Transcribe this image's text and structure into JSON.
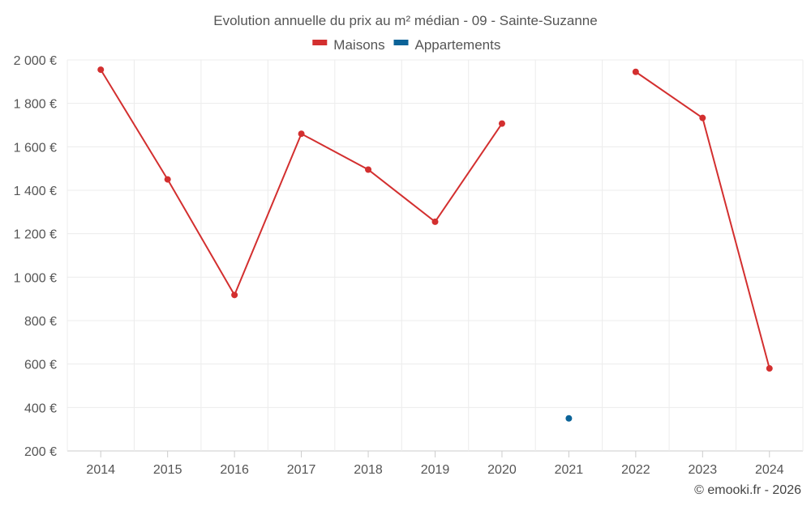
{
  "chart_data": {
    "type": "line",
    "title": "Evolution annuelle du prix au m² médian - 09 - Sainte-Suzanne",
    "xlabel": "",
    "ylabel": "",
    "categories": [
      "2014",
      "2015",
      "2016",
      "2017",
      "2018",
      "2019",
      "2020",
      "2021",
      "2022",
      "2023",
      "2024"
    ],
    "series": [
      {
        "name": "Maisons",
        "color": "#d32f2f",
        "values": [
          1955,
          1450,
          918,
          1660,
          1495,
          1255,
          1707,
          null,
          1945,
          1733,
          580
        ]
      },
      {
        "name": "Appartements",
        "color": "#0b6398",
        "values": [
          null,
          null,
          null,
          null,
          null,
          null,
          null,
          350,
          null,
          null,
          null
        ]
      }
    ],
    "ylim": [
      200,
      2000
    ],
    "yticks": [
      200,
      400,
      600,
      800,
      1000,
      1200,
      1400,
      1600,
      1800,
      2000
    ],
    "ytick_labels": [
      "200 €",
      "400 €",
      "600 €",
      "800 €",
      "1 000 €",
      "1 200 €",
      "1 400 €",
      "1 600 €",
      "1 800 €",
      "2 000 €"
    ],
    "grid": true,
    "legend_position": "top-center"
  },
  "credit": "© emooki.fr - 2026"
}
